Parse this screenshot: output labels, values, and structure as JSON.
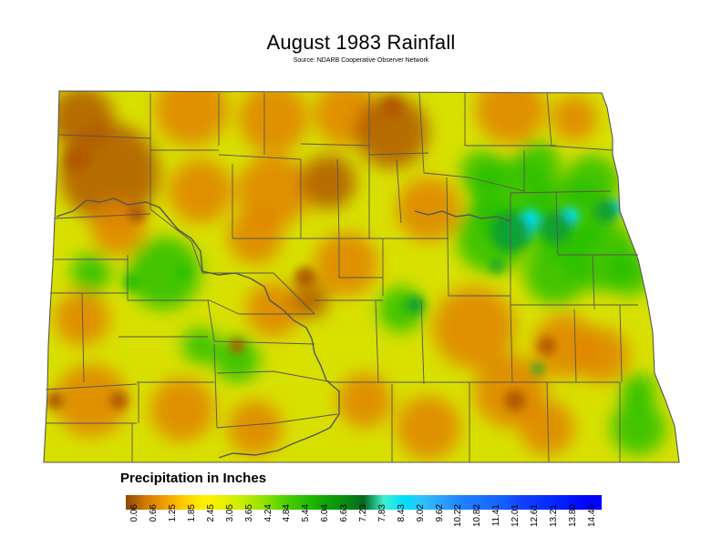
{
  "title": "August 1983 Rainfall",
  "subtitle": "Source: NDARB Cooperative Observer Network",
  "legend": {
    "title": "Precipitation in Inches",
    "ticks": [
      "0.06",
      "0.66",
      "1.25",
      "1.85",
      "2.45",
      "3.05",
      "3.65",
      "4.24",
      "4.84",
      "5.44",
      "6.04",
      "6.63",
      "7.23",
      "7.83",
      "8.43",
      "9.02",
      "9.62",
      "10.22",
      "10.82",
      "11.41",
      "12.01",
      "12.61",
      "13.21",
      "13.80",
      "14.40"
    ],
    "colors": [
      "#8a4a00",
      "#d27a00",
      "#f0a000",
      "#ffd000",
      "#fff200",
      "#e8f000",
      "#c0ec00",
      "#8ee400",
      "#50d000",
      "#28c000",
      "#10a800",
      "#0a8c10",
      "#006a20",
      "#40f0d0",
      "#00e0ff",
      "#30c0ff",
      "#2aa0ff",
      "#2080ff",
      "#1a70ff",
      "#1560ff",
      "#1040ff",
      "#0830ff",
      "#0020ff",
      "#0008ff",
      "#0000ff"
    ]
  },
  "map": {
    "region": "North Dakota",
    "base_color": "#d8e000",
    "wet_color": "#28c000",
    "very_wet_color": "#00e0ff",
    "dry_color": "#e08400",
    "very_dry_color": "#b05a00",
    "county_line_color": "#555555",
    "river_line_color": "#555555"
  }
}
